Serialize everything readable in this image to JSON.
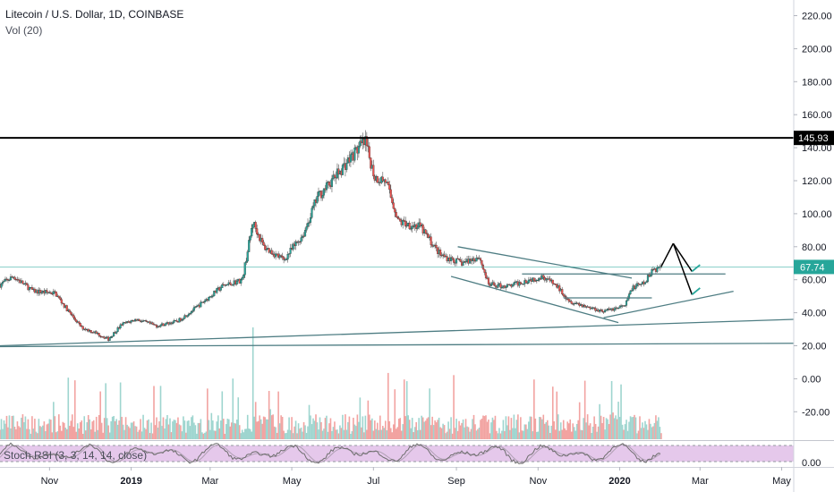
{
  "header": {
    "title": "Litecoin / U.S. Dollar, 1D, COINBASE",
    "volume_label": "Vol (20)",
    "stoch_label": "Stoch RSI (3, 3, 14, 14, close)"
  },
  "price_axis": {
    "ticks": [
      "220.00",
      "200.00",
      "180.00",
      "160.00",
      "140.00",
      "120.00",
      "100.00",
      "80.00",
      "60.00",
      "40.00",
      "20.00",
      "0.00",
      "-20.00"
    ],
    "marker_resistance": "145.93",
    "marker_last": "67.74"
  },
  "rsi_axis": {
    "tick": "0.00"
  },
  "time_axis": {
    "ticks": [
      "Nov",
      "2019",
      "Mar",
      "May",
      "Jul",
      "Sep",
      "Nov",
      "2020",
      "Mar",
      "May"
    ]
  },
  "colors": {
    "up": "#26a69a",
    "down": "#ef5350",
    "trendline": "#4e7d83",
    "resistance": "#000000",
    "last_price": "#26a69a",
    "rsi_band": "#e1bee7",
    "projection_up": "#26a69a",
    "projection_down": "#000000"
  },
  "chart_data": {
    "type": "candlestick",
    "title": "Litecoin / U.S. Dollar, 1D, COINBASE",
    "x_range": [
      "2018-09-25",
      "2020-05-10"
    ],
    "y_range": [
      -30,
      225
    ],
    "resistance_level": 145.93,
    "last_price": 67.74,
    "price_path": [
      [
        "2018-09-25",
        57
      ],
      [
        "2018-10-05",
        62
      ],
      [
        "2018-10-20",
        53
      ],
      [
        "2018-11-05",
        52
      ],
      [
        "2018-11-15",
        41
      ],
      [
        "2018-11-25",
        31
      ],
      [
        "2018-12-05",
        28
      ],
      [
        "2018-12-15",
        24
      ],
      [
        "2018-12-25",
        33
      ],
      [
        "2019-01-05",
        36
      ],
      [
        "2019-01-20",
        32
      ],
      [
        "2019-02-05",
        35
      ],
      [
        "2019-02-20",
        44
      ],
      [
        "2019-03-10",
        56
      ],
      [
        "2019-03-25",
        60
      ],
      [
        "2019-04-02",
        95
      ],
      [
        "2019-04-10",
        80
      ],
      [
        "2019-04-25",
        72
      ],
      [
        "2019-05-10",
        88
      ],
      [
        "2019-05-20",
        110
      ],
      [
        "2019-05-29",
        118
      ],
      [
        "2019-06-10",
        130
      ],
      [
        "2019-06-20",
        140
      ],
      [
        "2019-06-25",
        143
      ],
      [
        "2019-07-02",
        122
      ],
      [
        "2019-07-10",
        120
      ],
      [
        "2019-07-20",
        95
      ],
      [
        "2019-08-05",
        92
      ],
      [
        "2019-08-20",
        75
      ],
      [
        "2019-09-05",
        70
      ],
      [
        "2019-09-18",
        74
      ],
      [
        "2019-09-25",
        57
      ],
      [
        "2019-10-10",
        56
      ],
      [
        "2019-10-25",
        60
      ],
      [
        "2019-11-05",
        62
      ],
      [
        "2019-11-15",
        56
      ],
      [
        "2019-11-25",
        47
      ],
      [
        "2019-12-10",
        43
      ],
      [
        "2019-12-20",
        41
      ],
      [
        "2020-01-05",
        44
      ],
      [
        "2020-01-10",
        55
      ],
      [
        "2020-01-20",
        58
      ],
      [
        "2020-01-25",
        66
      ],
      [
        "2020-02-01",
        67.74
      ]
    ],
    "trendlines": [
      {
        "name": "channel-upper",
        "points": [
          [
            "2019-09-02",
            80
          ],
          [
            "2020-01-10",
            61
          ]
        ]
      },
      {
        "name": "channel-lower",
        "points": [
          [
            "2019-08-28",
            62
          ],
          [
            "2019-12-31",
            34
          ]
        ]
      },
      {
        "name": "breakout-level",
        "points": [
          [
            "2019-10-20",
            63.5
          ],
          [
            "2020-03-20",
            63.5
          ]
        ]
      },
      {
        "name": "inner-level",
        "points": [
          [
            "2019-11-20",
            49
          ],
          [
            "2020-01-25",
            49
          ]
        ]
      },
      {
        "name": "rising-support",
        "points": [
          [
            "2019-12-20",
            37
          ],
          [
            "2020-03-26",
            53
          ]
        ]
      },
      {
        "name": "long-support",
        "points": [
          [
            "2018-09-25",
            20
          ],
          [
            "2020-05-10",
            36
          ]
        ]
      },
      {
        "name": "horizontal-support",
        "points": [
          [
            "2018-09-25",
            19.5
          ],
          [
            "2020-05-10",
            21.5
          ]
        ]
      }
    ],
    "projection": [
      [
        "2020-02-01",
        68
      ],
      [
        "2020-02-10",
        82
      ],
      [
        "2020-02-24",
        51
      ],
      [
        "2020-03-01",
        55
      ],
      [
        "2020-02-24",
        65
      ],
      [
        "2020-03-01",
        69
      ]
    ],
    "volume_axis_max_note": "relative",
    "stoch_rsi_band": [
      20,
      80
    ]
  }
}
